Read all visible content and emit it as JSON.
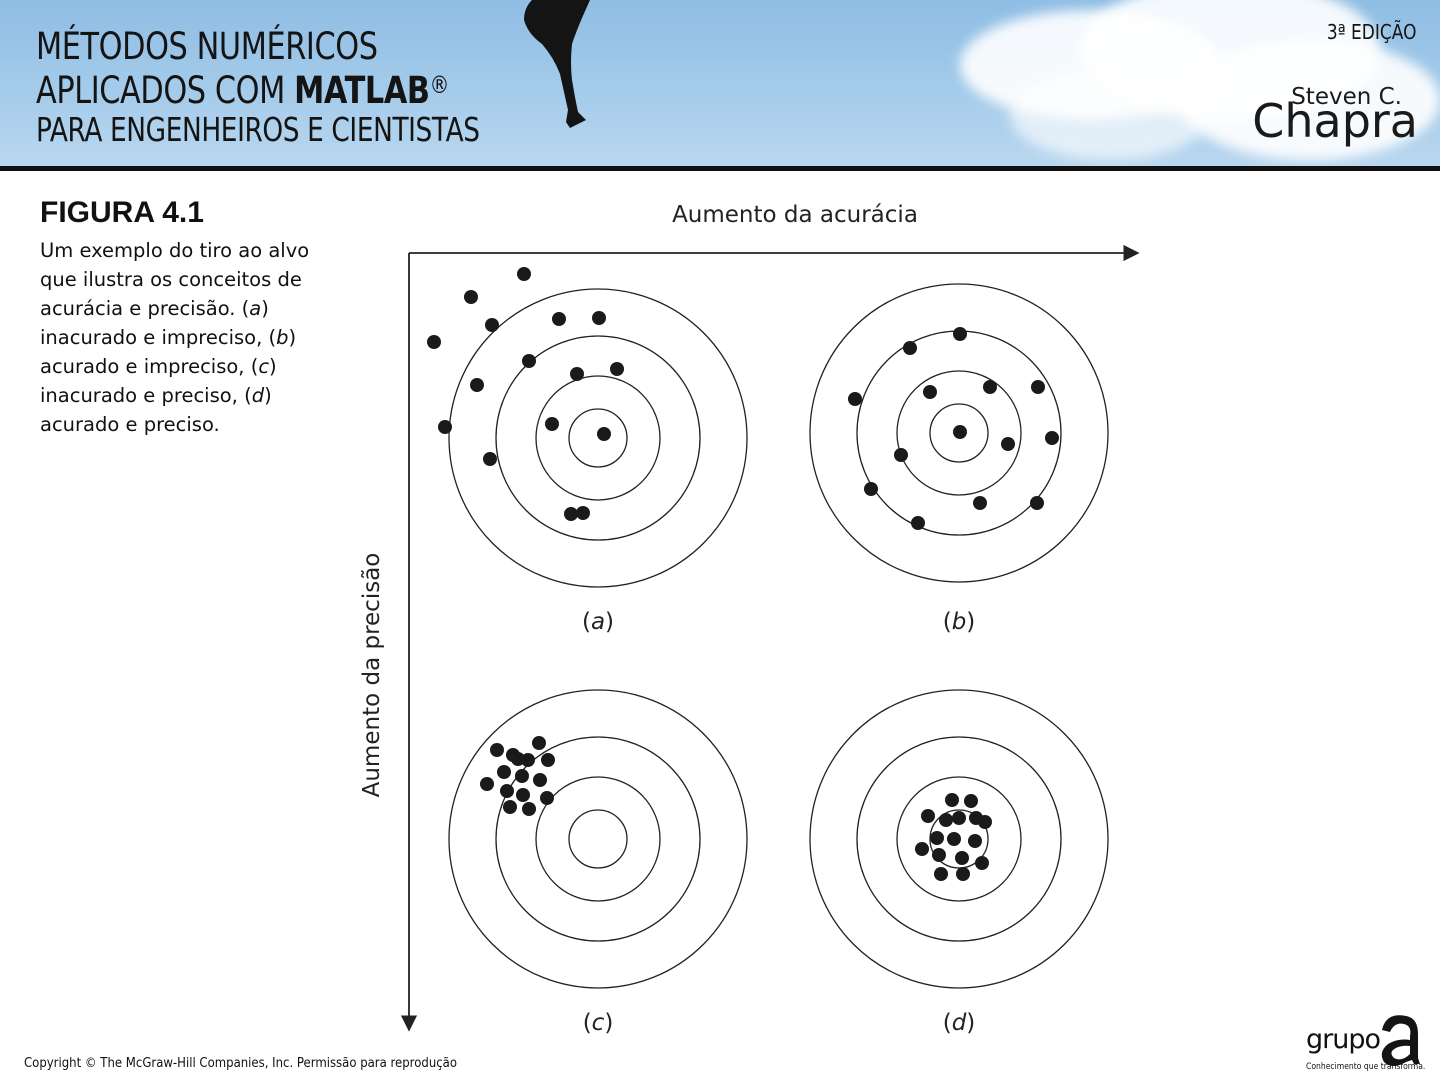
{
  "header": {
    "title_line1": "MÉTODOS NUMÉRICOS",
    "title_line2_prefix": "APLICADOS COM ",
    "title_line2_bold": "MATLAB",
    "title_line2_reg": "®",
    "title_line3": "PARA ENGENHEIROS E CIENTISTAS",
    "edition": "3ª EDIÇÃO",
    "author_first": "Steven C.",
    "author_last": "Chapra"
  },
  "figure": {
    "title": "FIGURA 4.1",
    "caption_parts": [
      "Um exemplo do tiro ao alvo que ilustra os conceitos de acurácia e precisão. (",
      "a",
      ") inacurado e impreciso, (",
      "b",
      ") acurado e impreciso, (",
      "c",
      ") inacurado e preciso, (",
      "d",
      ") acurado e preciso."
    ],
    "x_axis_label": "Aumento da acurácia",
    "y_axis_label": "Aumento da precisão",
    "targets": [
      {
        "label": "a",
        "hits": [
          [
            -74,
            -164
          ],
          [
            -127,
            -141
          ],
          [
            -106,
            -113
          ],
          [
            -39,
            -119
          ],
          [
            1,
            -120
          ],
          [
            -164,
            -96
          ],
          [
            -69,
            -77
          ],
          [
            -21,
            -64
          ],
          [
            19,
            -69
          ],
          [
            -121,
            -53
          ],
          [
            -46,
            -14
          ],
          [
            6,
            -4
          ],
          [
            -153,
            -11
          ],
          [
            -108,
            21
          ],
          [
            -27,
            76
          ],
          [
            -15,
            75
          ]
        ]
      },
      {
        "label": "b",
        "hits": [
          [
            1,
            -99
          ],
          [
            -49,
            -85
          ],
          [
            -104,
            -34
          ],
          [
            -29,
            -41
          ],
          [
            31,
            -46
          ],
          [
            79,
            -46
          ],
          [
            93,
            5
          ],
          [
            49,
            11
          ],
          [
            1,
            -1
          ],
          [
            -58,
            22
          ],
          [
            -88,
            56
          ],
          [
            -41,
            90
          ],
          [
            21,
            70
          ],
          [
            78,
            70
          ]
        ]
      },
      {
        "label": "c",
        "hits": [
          [
            -80,
            -80
          ],
          [
            -59,
            -96
          ],
          [
            -101,
            -89
          ],
          [
            -85,
            -84
          ],
          [
            -70,
            -79
          ],
          [
            -50,
            -79
          ],
          [
            -94,
            -67
          ],
          [
            -76,
            -63
          ],
          [
            -58,
            -59
          ],
          [
            -111,
            -55
          ],
          [
            -91,
            -48
          ],
          [
            -75,
            -44
          ],
          [
            -51,
            -41
          ],
          [
            -88,
            -32
          ],
          [
            -69,
            -30
          ]
        ]
      },
      {
        "label": "d",
        "hits": [
          [
            -7,
            -39
          ],
          [
            12,
            -38
          ],
          [
            -31,
            -23
          ],
          [
            -13,
            -19
          ],
          [
            0,
            -21
          ],
          [
            17,
            -21
          ],
          [
            26,
            -17
          ],
          [
            -22,
            -1
          ],
          [
            -5,
            0
          ],
          [
            16,
            2
          ],
          [
            -37,
            10
          ],
          [
            -20,
            16
          ],
          [
            3,
            19
          ],
          [
            23,
            24
          ],
          [
            -18,
            35
          ],
          [
            4,
            35
          ]
        ]
      }
    ]
  },
  "footer": {
    "copyright": "Copyright © The McGraw-Hill Companies, Inc. Permissão para reprodução",
    "logo_word": "grupo",
    "logo_tagline": "Conhecimento que transforma."
  }
}
